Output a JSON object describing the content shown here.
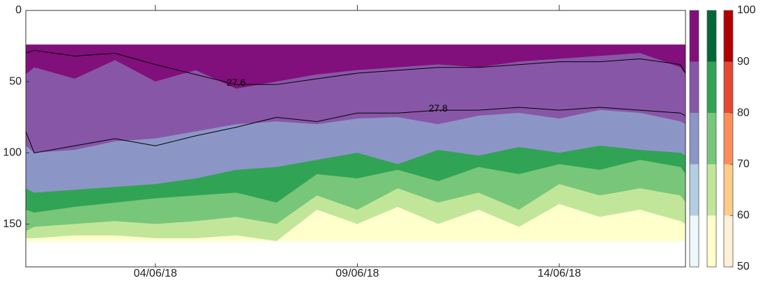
{
  "chart_data": {
    "type": "contourf",
    "x": [
      "2018-05-31T19:00",
      "2018-06-01T00:00",
      "2018-06-02T00:00",
      "2018-06-03T00:00",
      "2018-06-04T00:00",
      "2018-06-05T00:00",
      "2018-06-06T00:00",
      "2018-06-07T00:00",
      "2018-06-08T00:00",
      "2018-06-09T00:00",
      "2018-06-10T00:00",
      "2018-06-11T00:00",
      "2018-06-12T00:00",
      "2018-06-13T00:00",
      "2018-06-14T00:00",
      "2018-06-15T00:00",
      "2018-06-16T00:00",
      "2018-06-17T00:00",
      "2018-06-17T03:00"
    ],
    "xlim": [
      "2018-05-31T19:00",
      "2018-06-17T03:00"
    ],
    "xticks": [
      {
        "value": "2018-06-04T00:00",
        "label": "04/06/18"
      },
      {
        "value": "2018-06-09T00:00",
        "label": "09/06/18"
      },
      {
        "value": "2018-06-14T00:00",
        "label": "14/06/18"
      }
    ],
    "ylim": [
      0,
      180
    ],
    "y_reversed": true,
    "yticks": [
      0,
      50,
      100,
      150
    ],
    "data_top": 24,
    "series": [
      {
        "color": "#810f7c",
        "values": [
          45,
          40,
          48,
          35,
          50,
          42,
          55,
          50,
          45,
          42,
          40,
          38,
          40,
          36,
          34,
          32,
          30,
          40,
          45
        ]
      },
      {
        "color": "#8856a7",
        "values": [
          95,
          100,
          98,
          92,
          90,
          85,
          80,
          78,
          80,
          76,
          75,
          80,
          74,
          72,
          76,
          70,
          72,
          78,
          80
        ]
      },
      {
        "color": "#8c96c6",
        "values": [
          125,
          128,
          126,
          124,
          122,
          118,
          112,
          110,
          105,
          100,
          108,
          98,
          102,
          96,
          100,
          95,
          98,
          100,
          102
        ]
      },
      {
        "color": "#31a354",
        "values": [
          140,
          142,
          138,
          135,
          132,
          130,
          128,
          135,
          115,
          118,
          112,
          120,
          110,
          115,
          108,
          112,
          105,
          110,
          115
        ]
      },
      {
        "color": "#78c679",
        "values": [
          155,
          152,
          150,
          148,
          150,
          148,
          145,
          150,
          130,
          140,
          125,
          135,
          128,
          140,
          122,
          130,
          125,
          130,
          135
        ]
      },
      {
        "color": "#c2e699",
        "values": [
          160,
          160,
          158,
          158,
          160,
          160,
          158,
          162,
          140,
          150,
          138,
          150,
          140,
          152,
          136,
          145,
          140,
          148,
          150
        ]
      },
      {
        "color": "#ffffcc",
        "values": [
          162,
          162,
          162,
          162,
          162,
          162,
          162,
          162,
          162,
          162,
          162,
          162,
          162,
          162,
          162,
          162,
          162,
          162,
          162
        ]
      }
    ],
    "contours": [
      {
        "name": "27.6",
        "color": "#000000",
        "values": [
          30,
          28,
          32,
          30,
          38,
          45,
          52,
          52,
          48,
          44,
          42,
          40,
          40,
          38,
          36,
          36,
          34,
          38,
          44
        ]
      },
      {
        "name": "27.8",
        "color": "#000000",
        "values": [
          85,
          100,
          95,
          90,
          95,
          88,
          82,
          75,
          78,
          72,
          72,
          70,
          70,
          68,
          70,
          68,
          70,
          72,
          74
        ]
      }
    ],
    "colorbar_lim": [
      50,
      100
    ],
    "colorbar_ticks": [
      50,
      60,
      70,
      80,
      90,
      100
    ],
    "colorbars": [
      {
        "colors": [
          "#edf8fb",
          "#b3cde3",
          "#8c96c6",
          "#8856a7",
          "#810f7c"
        ]
      },
      {
        "colors": [
          "#ffffcc",
          "#c2e699",
          "#78c679",
          "#31a354",
          "#006837"
        ]
      },
      {
        "colors": [
          "#fef0d9",
          "#fdcc8a",
          "#fc8d59",
          "#e34a33",
          "#b30000"
        ]
      }
    ]
  }
}
